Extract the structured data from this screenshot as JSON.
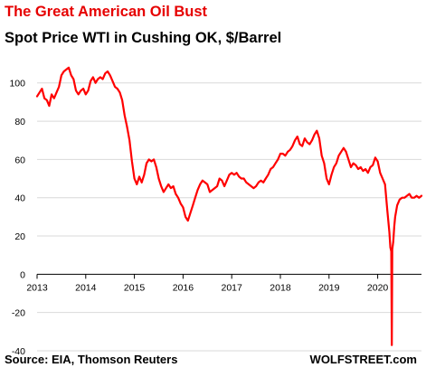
{
  "header": {
    "title": "The Great American Oil Bust",
    "subtitle": "Spot Price WTI in Cushing OK, $/Barrel"
  },
  "footer": {
    "source": "Source: EIA, Thomson Reuters",
    "brand": "WOLFSTREET.com"
  },
  "colors": {
    "title": "#e60000",
    "series": "#ff0000",
    "grid": "#d9d9d9",
    "axis": "#000000"
  },
  "chart_data": {
    "type": "line",
    "title": "Spot Price WTI in Cushing OK, $/Barrel",
    "xlabel": "",
    "ylabel": "",
    "xlim": [
      2013.0,
      2020.9
    ],
    "ylim": [
      -40,
      115
    ],
    "x_ticks": [
      2013,
      2014,
      2015,
      2016,
      2017,
      2018,
      2019,
      2020
    ],
    "y_ticks": [
      -40,
      -20,
      0,
      20,
      40,
      60,
      80,
      100
    ],
    "grid": "horizontal",
    "legend": "none",
    "series": [
      {
        "x": [
          2013.0,
          2013.05,
          2013.1,
          2013.15,
          2013.2,
          2013.25,
          2013.3,
          2013.35,
          2013.4,
          2013.45,
          2013.5,
          2013.55,
          2013.6,
          2013.65,
          2013.7,
          2013.75,
          2013.8,
          2013.85,
          2013.9,
          2013.95,
          2014.0,
          2014.05,
          2014.1,
          2014.15,
          2014.2,
          2014.25,
          2014.3,
          2014.35,
          2014.4,
          2014.45,
          2014.5,
          2014.55,
          2014.6,
          2014.65,
          2014.7,
          2014.75,
          2014.8,
          2014.85,
          2014.9,
          2014.95,
          2015.0,
          2015.05,
          2015.1,
          2015.15,
          2015.2,
          2015.25,
          2015.3,
          2015.35,
          2015.4,
          2015.45,
          2015.5,
          2015.55,
          2015.6,
          2015.65,
          2015.7,
          2015.75,
          2015.8,
          2015.85,
          2015.9,
          2015.95,
          2016.0,
          2016.05,
          2016.1,
          2016.15,
          2016.2,
          2016.25,
          2016.3,
          2016.35,
          2016.4,
          2016.45,
          2016.5,
          2016.55,
          2016.6,
          2016.65,
          2016.7,
          2016.75,
          2016.8,
          2016.85,
          2016.9,
          2016.95,
          2017.0,
          2017.05,
          2017.1,
          2017.15,
          2017.2,
          2017.25,
          2017.3,
          2017.35,
          2017.4,
          2017.45,
          2017.5,
          2017.55,
          2017.6,
          2017.65,
          2017.7,
          2017.75,
          2017.8,
          2017.85,
          2017.9,
          2017.95,
          2018.0,
          2018.05,
          2018.1,
          2018.15,
          2018.2,
          2018.25,
          2018.3,
          2018.35,
          2018.4,
          2018.45,
          2018.5,
          2018.55,
          2018.6,
          2018.65,
          2018.7,
          2018.75,
          2018.8,
          2018.85,
          2018.9,
          2018.95,
          2019.0,
          2019.05,
          2019.1,
          2019.15,
          2019.2,
          2019.25,
          2019.3,
          2019.35,
          2019.4,
          2019.45,
          2019.5,
          2019.55,
          2019.6,
          2019.65,
          2019.7,
          2019.75,
          2019.8,
          2019.85,
          2019.9,
          2019.95,
          2020.0,
          2020.05,
          2020.1,
          2020.15,
          2020.2,
          2020.24,
          2020.26,
          2020.28,
          2020.29,
          2020.3,
          2020.32,
          2020.34,
          2020.36,
          2020.4,
          2020.45,
          2020.5,
          2020.55,
          2020.6,
          2020.65,
          2020.7,
          2020.75,
          2020.8,
          2020.85,
          2020.9
        ],
        "values": [
          93,
          95,
          97,
          92,
          91,
          88,
          94,
          92,
          95,
          98,
          104,
          106,
          107,
          108,
          104,
          102,
          96,
          94,
          96,
          97,
          94,
          96,
          101,
          103,
          100,
          102,
          103,
          102,
          105,
          106,
          104,
          101,
          98,
          97,
          95,
          91,
          83,
          77,
          70,
          59,
          50,
          47,
          51,
          48,
          52,
          58,
          60,
          59,
          60,
          56,
          50,
          46,
          43,
          45,
          47,
          45,
          46,
          42,
          40,
          37,
          35,
          30,
          28,
          32,
          36,
          40,
          44,
          47,
          49,
          48,
          47,
          43,
          44,
          45,
          46,
          50,
          49,
          46,
          49,
          52,
          53,
          52,
          53,
          51,
          50,
          50,
          48,
          47,
          46,
          45,
          46,
          48,
          49,
          48,
          50,
          52,
          55,
          56,
          58,
          60,
          63,
          63,
          62,
          64,
          65,
          67,
          70,
          72,
          68,
          67,
          71,
          69,
          68,
          70,
          73,
          75,
          71,
          62,
          58,
          50,
          47,
          52,
          56,
          58,
          62,
          64,
          66,
          64,
          60,
          56,
          58,
          57,
          55,
          56,
          54,
          55,
          53,
          56,
          57,
          61,
          59,
          53,
          50,
          47,
          33,
          22,
          14,
          12,
          -37,
          13,
          17,
          25,
          30,
          36,
          39,
          40,
          40,
          41,
          42,
          40,
          40,
          41,
          40,
          41
        ]
      }
    ]
  }
}
